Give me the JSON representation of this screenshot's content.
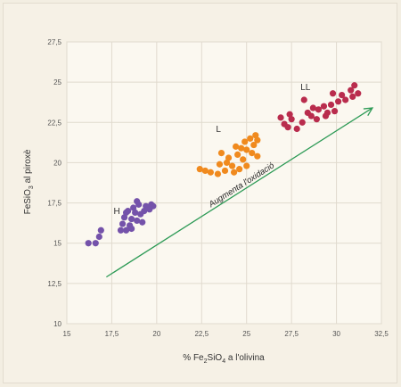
{
  "chart_data": {
    "type": "scatter",
    "xlabel_html": "% Fe<tspan baseline-shift='sub' font-size='7'>2</tspan>SiO<tspan baseline-shift='sub' font-size='7'>4</tspan> a l'olivina",
    "xlabel": "% Fe2SiO4 a l'olivina",
    "ylabel": "FeSiO3 al piroxè",
    "xlim": [
      15,
      32.5
    ],
    "ylim": [
      10,
      27.5
    ],
    "xticks": [
      "15",
      "17,5",
      "20",
      "22,5",
      "25",
      "27,5",
      "30",
      "32,5"
    ],
    "yticks": [
      "10",
      "12,5",
      "15",
      "17,5",
      "20",
      "22,5",
      "25",
      "27,5"
    ],
    "grid": true,
    "arrow": {
      "label": "Augmenta l'oxidació",
      "color": "#2c9a55",
      "from": [
        17.2,
        12.9
      ],
      "to": [
        32.0,
        23.4
      ]
    },
    "series": [
      {
        "name": "H",
        "color": "#7452aa",
        "label_at": [
          17.6,
          16.8
        ],
        "points": [
          [
            16.2,
            15.0
          ],
          [
            16.6,
            15.0
          ],
          [
            16.8,
            15.4
          ],
          [
            16.9,
            15.8
          ],
          [
            18.0,
            15.8
          ],
          [
            18.3,
            15.8
          ],
          [
            18.1,
            16.2
          ],
          [
            18.5,
            16.1
          ],
          [
            18.2,
            16.6
          ],
          [
            18.6,
            16.5
          ],
          [
            18.9,
            16.4
          ],
          [
            18.4,
            17.0
          ],
          [
            18.8,
            16.9
          ],
          [
            19.1,
            16.8
          ],
          [
            18.7,
            17.2
          ],
          [
            19.0,
            17.4
          ],
          [
            19.3,
            17.0
          ],
          [
            19.4,
            17.3
          ],
          [
            19.6,
            17.1
          ],
          [
            19.8,
            17.3
          ],
          [
            19.2,
            16.3
          ],
          [
            18.9,
            17.6
          ],
          [
            19.7,
            17.4
          ],
          [
            18.3,
            16.9
          ],
          [
            18.6,
            15.9
          ]
        ]
      },
      {
        "name": "L",
        "color": "#f08a1e",
        "label_at": [
          23.3,
          21.9
        ],
        "points": [
          [
            22.4,
            19.6
          ],
          [
            22.7,
            19.5
          ],
          [
            23.0,
            19.4
          ],
          [
            23.4,
            19.3
          ],
          [
            23.5,
            19.9
          ],
          [
            23.9,
            20.0
          ],
          [
            24.2,
            19.8
          ],
          [
            24.6,
            19.6
          ],
          [
            24.0,
            20.3
          ],
          [
            24.5,
            20.5
          ],
          [
            24.8,
            20.2
          ],
          [
            25.0,
            20.8
          ],
          [
            25.3,
            20.6
          ],
          [
            24.4,
            21.0
          ],
          [
            24.9,
            21.3
          ],
          [
            25.4,
            21.1
          ],
          [
            25.2,
            21.5
          ],
          [
            25.6,
            21.4
          ],
          [
            24.7,
            20.9
          ],
          [
            23.6,
            20.6
          ],
          [
            25.6,
            20.4
          ],
          [
            25.0,
            19.8
          ],
          [
            24.3,
            19.4
          ],
          [
            25.5,
            21.7
          ],
          [
            23.8,
            19.5
          ]
        ]
      },
      {
        "name": "LL",
        "color": "#b92c4d",
        "label_at": [
          28.0,
          24.5
        ],
        "points": [
          [
            26.9,
            22.8
          ],
          [
            27.1,
            22.4
          ],
          [
            27.3,
            22.2
          ],
          [
            27.5,
            22.7
          ],
          [
            27.8,
            22.1
          ],
          [
            28.1,
            22.5
          ],
          [
            28.2,
            23.9
          ],
          [
            28.4,
            23.1
          ],
          [
            28.6,
            22.9
          ],
          [
            28.9,
            22.7
          ],
          [
            29.0,
            23.3
          ],
          [
            29.3,
            23.5
          ],
          [
            29.5,
            23.1
          ],
          [
            29.7,
            23.6
          ],
          [
            29.9,
            23.2
          ],
          [
            30.1,
            23.8
          ],
          [
            30.3,
            24.2
          ],
          [
            30.5,
            23.9
          ],
          [
            30.8,
            24.5
          ],
          [
            30.9,
            24.1
          ],
          [
            31.0,
            24.8
          ],
          [
            29.8,
            24.3
          ],
          [
            29.4,
            22.9
          ],
          [
            28.7,
            23.4
          ],
          [
            27.4,
            23.0
          ],
          [
            31.2,
            24.3
          ]
        ]
      }
    ]
  }
}
